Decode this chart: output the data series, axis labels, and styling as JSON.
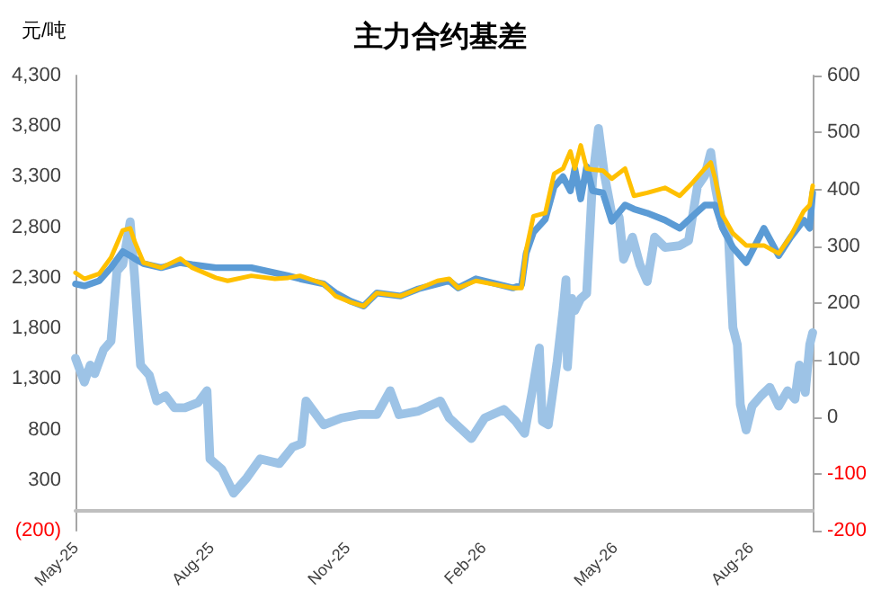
{
  "chart_data": {
    "type": "line",
    "title": "主力合约基差",
    "ylabel": "元/吨",
    "xlim": [
      "2025-05-01",
      "2026-09-12"
    ],
    "xticks": [
      {
        "value": "2025-05-01",
        "label": "May-25"
      },
      {
        "value": "2025-08-01",
        "label": "Aug-25"
      },
      {
        "value": "2025-11-01",
        "label": "Nov-25"
      },
      {
        "value": "2026-02-01",
        "label": "Feb-26"
      },
      {
        "value": "2026-05-01",
        "label": "May-26"
      },
      {
        "value": "2026-08-01",
        "label": "Aug-26"
      }
    ],
    "ylim": [
      -200,
      4300
    ],
    "yticks": [
      {
        "value": -200,
        "label": "(200)"
      },
      300,
      800,
      {
        "value": 1300,
        "label": "1,300"
      },
      {
        "value": 1800,
        "label": "1,800"
      },
      {
        "value": 2300,
        "label": "2,300"
      },
      {
        "value": 2800,
        "label": "2,800"
      },
      {
        "value": 3300,
        "label": "3,300"
      },
      {
        "value": 3800,
        "label": "3,800"
      },
      {
        "value": 4300,
        "label": "4,300"
      }
    ],
    "y2lim": [
      -200,
      600
    ],
    "y2ticks": [
      -200,
      -100,
      0,
      100,
      200,
      300,
      400,
      500,
      600
    ],
    "grid": false,
    "marker": "none",
    "line_style": "solid",
    "series": [
      {
        "axis": "y2",
        "color": "#9dc3e6",
        "x": [
          "2025-05-01",
          "2025-05-07",
          "2025-05-11",
          "2025-05-14",
          "2025-05-20",
          "2025-05-25",
          "2025-05-29",
          "2025-06-02",
          "2025-06-07",
          "2025-06-10",
          "2025-06-13",
          "2025-06-14",
          "2025-06-20",
          "2025-06-25",
          "2025-07-01",
          "2025-07-07",
          "2025-07-14",
          "2025-07-23",
          "2025-07-29",
          "2025-07-31",
          "2025-08-08",
          "2025-08-16",
          "2025-08-25",
          "2025-09-03",
          "2025-09-16",
          "2025-09-25",
          "2025-10-01",
          "2025-10-04",
          "2025-10-16",
          "2025-10-28",
          "2025-11-09",
          "2025-11-21",
          "2025-11-30",
          "2025-12-06",
          "2025-12-19",
          "2026-01-03",
          "2026-01-09",
          "2026-01-24",
          "2026-02-02",
          "2026-02-15",
          "2026-02-23",
          "2026-03-01",
          "2026-03-06",
          "2026-03-11",
          "2026-03-13",
          "2026-03-17",
          "2026-03-23",
          "2026-03-27",
          "2026-03-29",
          "2026-03-30",
          "2026-04-02",
          "2026-04-04",
          "2026-04-08",
          "2026-04-12",
          "2026-04-16",
          "2026-04-20",
          "2026-04-24",
          "2026-04-29",
          "2026-05-04",
          "2026-05-07",
          "2026-05-13",
          "2026-05-18",
          "2026-05-23",
          "2026-05-28",
          "2026-06-04",
          "2026-06-14",
          "2026-06-20",
          "2026-06-26",
          "2026-07-01",
          "2026-07-05",
          "2026-07-08",
          "2026-07-13",
          "2026-07-17",
          "2026-07-20",
          "2026-07-23",
          "2026-07-25",
          "2026-07-29",
          "2026-08-02",
          "2026-08-08",
          "2026-08-14",
          "2026-08-20",
          "2026-08-26",
          "2026-08-31",
          "2026-09-03",
          "2026-09-07",
          "2026-09-10",
          "2026-09-12"
        ],
        "values": [
          103,
          61,
          91,
          76,
          118,
          133,
          256,
          268,
          343,
          247,
          127,
          91,
          73,
          28,
          37,
          16,
          16,
          25,
          46,
          -74,
          -92,
          -134,
          -107,
          -74,
          -82,
          -53,
          -47,
          28,
          -14,
          -2,
          4,
          4,
          46,
          4,
          10,
          28,
          -2,
          -38,
          -2,
          13,
          -8,
          -29,
          43,
          121,
          -8,
          -14,
          97,
          187,
          241,
          88,
          208,
          187,
          208,
          217,
          417,
          507,
          426,
          357,
          351,
          277,
          316,
          268,
          238,
          316,
          298,
          301,
          310,
          405,
          424,
          465,
          405,
          337,
          316,
          157,
          127,
          22,
          -23,
          19,
          37,
          52,
          19,
          46,
          31,
          91,
          43,
          127,
          148
        ]
      },
      {
        "color": "#5b9bd5",
        "x": [
          "2025-05-01",
          "2025-05-07",
          "2025-05-17",
          "2025-05-25",
          "2025-06-02",
          "2025-06-07",
          "2025-06-10",
          "2025-06-16",
          "2025-06-28",
          "2025-07-11",
          "2025-07-19",
          "2025-08-04",
          "2025-08-12",
          "2025-08-28",
          "2025-09-13",
          "2025-09-22",
          "2025-09-30",
          "2025-10-16",
          "2025-10-24",
          "2025-11-03",
          "2025-11-12",
          "2025-11-21",
          "2025-12-07",
          "2025-12-19",
          "2026-01-01",
          "2026-01-09",
          "2026-01-15",
          "2026-01-27",
          "2026-02-21",
          "2026-02-27",
          "2026-03-02",
          "2026-03-07",
          "2026-03-15",
          "2026-03-21",
          "2026-03-27",
          "2026-04-01",
          "2026-04-04",
          "2026-04-08",
          "2026-04-12",
          "2026-04-16",
          "2026-04-23",
          "2026-04-29",
          "2026-05-08",
          "2026-05-14",
          "2026-05-23",
          "2026-06-04",
          "2026-06-14",
          "2026-06-22",
          "2026-07-01",
          "2026-07-05",
          "2026-07-08",
          "2026-07-13",
          "2026-07-20",
          "2026-07-29",
          "2026-08-10",
          "2026-08-20",
          "2026-08-28",
          "2026-09-06",
          "2026-09-10",
          "2026-09-12"
        ],
        "values": [
          2240,
          2220,
          2270,
          2400,
          2560,
          2520,
          2490,
          2440,
          2400,
          2450,
          2430,
          2400,
          2400,
          2400,
          2350,
          2320,
          2290,
          2240,
          2150,
          2070,
          2020,
          2150,
          2120,
          2190,
          2240,
          2270,
          2200,
          2290,
          2200,
          2230,
          2540,
          2750,
          2880,
          3200,
          3300,
          3160,
          3380,
          3080,
          3400,
          3160,
          3140,
          2860,
          3020,
          2980,
          2940,
          2870,
          2790,
          2900,
          3020,
          3020,
          3020,
          2790,
          2600,
          2450,
          2790,
          2520,
          2700,
          2870,
          2790,
          3140
        ]
      },
      {
        "color": "#ffc000",
        "x": [
          "2025-05-01",
          "2025-05-07",
          "2025-05-17",
          "2025-05-25",
          "2025-06-02",
          "2025-06-07",
          "2025-06-10",
          "2025-06-16",
          "2025-06-28",
          "2025-07-11",
          "2025-07-19",
          "2025-08-04",
          "2025-08-12",
          "2025-08-28",
          "2025-09-13",
          "2025-09-22",
          "2025-09-30",
          "2025-10-16",
          "2025-10-24",
          "2025-11-03",
          "2025-11-12",
          "2025-11-21",
          "2025-12-07",
          "2025-12-19",
          "2026-01-01",
          "2026-01-09",
          "2026-01-15",
          "2026-01-27",
          "2026-02-21",
          "2026-02-27",
          "2026-03-02",
          "2026-03-07",
          "2026-03-15",
          "2026-03-21",
          "2026-03-27",
          "2026-04-01",
          "2026-04-04",
          "2026-04-08",
          "2026-04-12",
          "2026-04-16",
          "2026-04-23",
          "2026-04-29",
          "2026-05-08",
          "2026-05-14",
          "2026-05-23",
          "2026-06-04",
          "2026-06-14",
          "2026-06-22",
          "2026-07-01",
          "2026-07-05",
          "2026-07-08",
          "2026-07-13",
          "2026-07-20",
          "2026-07-29",
          "2026-08-10",
          "2026-08-20",
          "2026-08-28",
          "2026-09-06",
          "2026-09-10",
          "2026-09-12"
        ],
        "values": [
          2350,
          2290,
          2340,
          2500,
          2770,
          2790,
          2660,
          2450,
          2400,
          2490,
          2400,
          2300,
          2270,
          2320,
          2290,
          2300,
          2320,
          2240,
          2120,
          2060,
          2020,
          2150,
          2120,
          2190,
          2270,
          2290,
          2200,
          2270,
          2200,
          2200,
          2570,
          2910,
          2940,
          3330,
          3380,
          3550,
          3380,
          3610,
          3380,
          3370,
          3360,
          3280,
          3380,
          3110,
          3140,
          3190,
          3110,
          3230,
          3380,
          3440,
          3280,
          2920,
          2740,
          2620,
          2620,
          2540,
          2710,
          2960,
          3020,
          3210
        ]
      }
    ]
  }
}
